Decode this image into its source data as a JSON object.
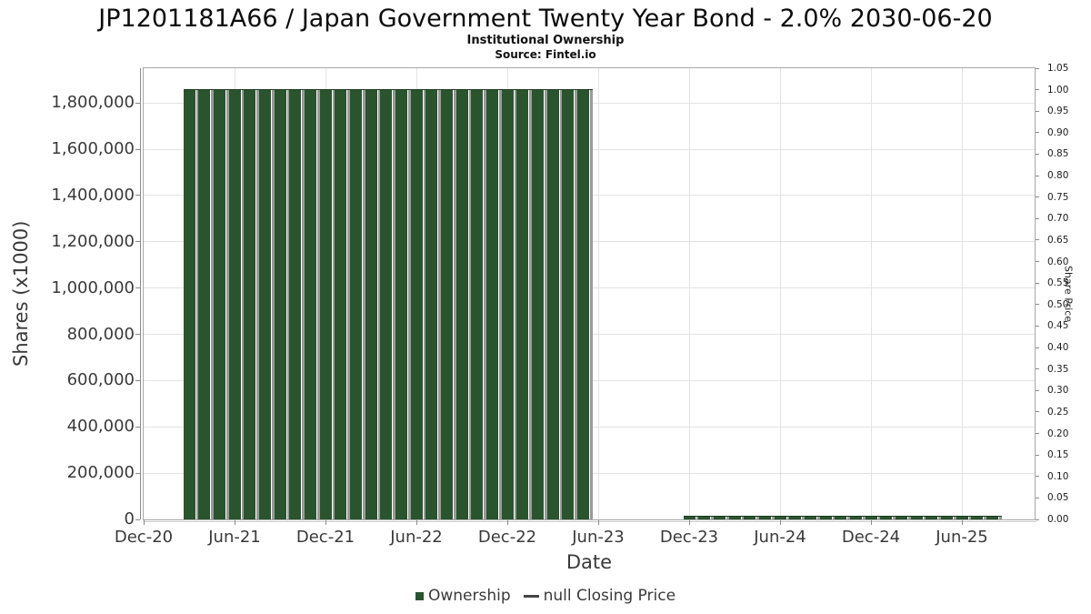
{
  "header": {
    "title": "JP1201181A66 / Japan Government Twenty Year Bond - 2.0% 2030-06-20",
    "subtitle": "Institutional Ownership",
    "source": "Source: Fintel.io"
  },
  "legend": {
    "ownership_label": "Ownership",
    "closing_price_label": "null Closing Price"
  },
  "colors": {
    "bar_green": "#2a542e",
    "bar_shadow": "#9a9a9a",
    "grid": "#e3e3e3",
    "plot_border": "#a8a8a8",
    "tick_text": "#3a3a3a"
  },
  "chart_data": {
    "type": "bar",
    "title": "JP1201181A66 / Japan Government Twenty Year Bond - 2.0% 2030-06-20",
    "subtitle": "Institutional Ownership",
    "source": "Source: Fintel.io",
    "xlabel": "Date",
    "ylabel": "Shares (x1000)",
    "ylabel_right": "Share Price",
    "grid": true,
    "legend_position": "bottom",
    "x_axis": {
      "origin_month": "Dec-20",
      "months_span": 59,
      "tick_labels": [
        "Dec-20",
        "Jun-21",
        "Dec-21",
        "Jun-22",
        "Dec-22",
        "Jun-23",
        "Dec-23",
        "Jun-24",
        "Dec-24",
        "Jun-25"
      ]
    },
    "y_axis_left": {
      "label": "Shares (x1000)",
      "axis_max": 1950000,
      "ticks": [
        {
          "label": "0",
          "value": 0
        },
        {
          "label": "200,000",
          "value": 200000
        },
        {
          "label": "400,000",
          "value": 400000
        },
        {
          "label": "600,000",
          "value": 600000
        },
        {
          "label": "800,000",
          "value": 800000
        },
        {
          "label": "1,000,000",
          "value": 1000000
        },
        {
          "label": "1,200,000",
          "value": 1200000
        },
        {
          "label": "1,400,000",
          "value": 1400000
        },
        {
          "label": "1,600,000",
          "value": 1600000
        },
        {
          "label": "1,800,000",
          "value": 1800000
        }
      ]
    },
    "y_axis_right": {
      "label": "Share Price",
      "axis_min": 0.0,
      "axis_max": 1.05,
      "tick_labels": [
        "0.00",
        "0.05",
        "0.10",
        "0.15",
        "0.20",
        "0.25",
        "0.30",
        "0.35",
        "0.40",
        "0.45",
        "0.50",
        "0.55",
        "0.60",
        "0.65",
        "0.70",
        "0.75",
        "0.80",
        "0.85",
        "0.90",
        "0.95",
        "1.00",
        "1.05"
      ]
    },
    "series": [
      {
        "name": "Ownership",
        "type": "bar",
        "color": "#2a542e",
        "points": [
          {
            "x": "Mar-21",
            "y": 1857000
          },
          {
            "x": "Apr-21",
            "y": 1857000
          },
          {
            "x": "May-21",
            "y": 1857000
          },
          {
            "x": "Jun-21",
            "y": 1857000
          },
          {
            "x": "Jul-21",
            "y": 1857000
          },
          {
            "x": "Aug-21",
            "y": 1857000
          },
          {
            "x": "Sep-21",
            "y": 1857000
          },
          {
            "x": "Oct-21",
            "y": 1857000
          },
          {
            "x": "Nov-21",
            "y": 1857000
          },
          {
            "x": "Dec-21",
            "y": 1857000
          },
          {
            "x": "Jan-22",
            "y": 1857000
          },
          {
            "x": "Feb-22",
            "y": 1857000
          },
          {
            "x": "Mar-22",
            "y": 1857000
          },
          {
            "x": "Apr-22",
            "y": 1857000
          },
          {
            "x": "May-22",
            "y": 1857000
          },
          {
            "x": "Jun-22",
            "y": 1857000
          },
          {
            "x": "Jul-22",
            "y": 1857000
          },
          {
            "x": "Aug-22",
            "y": 1857000
          },
          {
            "x": "Sep-22",
            "y": 1857000
          },
          {
            "x": "Oct-22",
            "y": 1857000
          },
          {
            "x": "Nov-22",
            "y": 1857000
          },
          {
            "x": "Dec-22",
            "y": 1857000
          },
          {
            "x": "Jan-23",
            "y": 1857000
          },
          {
            "x": "Feb-23",
            "y": 1857000
          },
          {
            "x": "Mar-23",
            "y": 1857000
          },
          {
            "x": "Apr-23",
            "y": 1857000
          },
          {
            "x": "May-23",
            "y": 1857000
          },
          {
            "x": "Dec-23",
            "y": 11000
          },
          {
            "x": "Jan-24",
            "y": 11000
          },
          {
            "x": "Feb-24",
            "y": 11000
          },
          {
            "x": "Mar-24",
            "y": 11000
          },
          {
            "x": "Apr-24",
            "y": 11000
          },
          {
            "x": "May-24",
            "y": 11000
          },
          {
            "x": "Jun-24",
            "y": 11000
          },
          {
            "x": "Jul-24",
            "y": 11000
          },
          {
            "x": "Aug-24",
            "y": 11000
          },
          {
            "x": "Sep-24",
            "y": 11000
          },
          {
            "x": "Oct-24",
            "y": 11000
          },
          {
            "x": "Nov-24",
            "y": 11000
          },
          {
            "x": "Dec-24",
            "y": 11000
          },
          {
            "x": "Jan-25",
            "y": 11000
          },
          {
            "x": "Feb-25",
            "y": 11000
          },
          {
            "x": "Mar-25",
            "y": 11000
          },
          {
            "x": "Apr-25",
            "y": 11000
          },
          {
            "x": "May-25",
            "y": 11000
          },
          {
            "x": "Jun-25",
            "y": 11000
          },
          {
            "x": "Jul-25",
            "y": 11000
          },
          {
            "x": "Aug-25",
            "y": 11000
          }
        ]
      },
      {
        "name": "null Closing Price",
        "type": "line",
        "points": []
      }
    ]
  }
}
